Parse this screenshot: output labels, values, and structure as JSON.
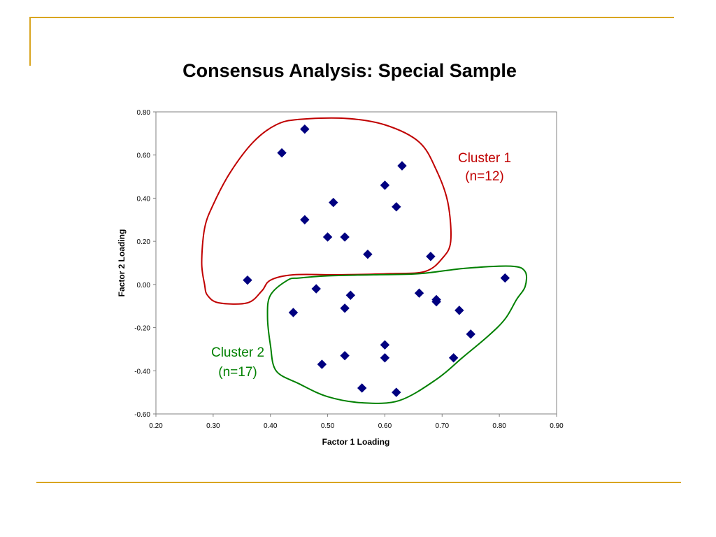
{
  "slide": {
    "title": "Consensus Analysis: Special Sample",
    "accent_color": "#D9A520"
  },
  "chart_data": {
    "type": "scatter",
    "xlabel": "Factor 1 Loading",
    "ylabel": "Factor 2 Loading",
    "xlim": [
      0.2,
      0.9
    ],
    "ylim": [
      -0.6,
      0.8
    ],
    "x_ticks": [
      "0.20",
      "0.30",
      "0.40",
      "0.50",
      "0.60",
      "0.70",
      "0.80",
      "0.90"
    ],
    "y_ticks": [
      "0.80",
      "0.60",
      "0.40",
      "0.20",
      "0.00",
      "-0.20",
      "-0.40",
      "-0.60"
    ],
    "grid": false,
    "marker": "diamond",
    "marker_color": "#000080",
    "points": [
      {
        "x": 0.46,
        "y": 0.72
      },
      {
        "x": 0.42,
        "y": 0.61
      },
      {
        "x": 0.63,
        "y": 0.55
      },
      {
        "x": 0.6,
        "y": 0.46
      },
      {
        "x": 0.51,
        "y": 0.38
      },
      {
        "x": 0.62,
        "y": 0.36
      },
      {
        "x": 0.46,
        "y": 0.3
      },
      {
        "x": 0.5,
        "y": 0.22
      },
      {
        "x": 0.53,
        "y": 0.22
      },
      {
        "x": 0.57,
        "y": 0.14
      },
      {
        "x": 0.68,
        "y": 0.13
      },
      {
        "x": 0.36,
        "y": 0.02
      },
      {
        "x": 0.81,
        "y": 0.03
      },
      {
        "x": 0.48,
        "y": -0.02
      },
      {
        "x": 0.54,
        "y": -0.05
      },
      {
        "x": 0.66,
        "y": -0.04
      },
      {
        "x": 0.69,
        "y": -0.07
      },
      {
        "x": 0.69,
        "y": -0.08
      },
      {
        "x": 0.44,
        "y": -0.13
      },
      {
        "x": 0.53,
        "y": -0.11
      },
      {
        "x": 0.73,
        "y": -0.12
      },
      {
        "x": 0.75,
        "y": -0.23
      },
      {
        "x": 0.6,
        "y": -0.28
      },
      {
        "x": 0.53,
        "y": -0.33
      },
      {
        "x": 0.6,
        "y": -0.34
      },
      {
        "x": 0.72,
        "y": -0.34
      },
      {
        "x": 0.49,
        "y": -0.37
      },
      {
        "x": 0.56,
        "y": -0.48
      },
      {
        "x": 0.62,
        "y": -0.5
      }
    ],
    "annotations": [
      {
        "name": "cluster-1",
        "lines": [
          "Cluster 1",
          "(n=12)"
        ],
        "color": "#C00000"
      },
      {
        "name": "cluster-2",
        "lines": [
          "Cluster 2",
          "(n=17)"
        ],
        "color": "#008000"
      }
    ],
    "outlines": [
      {
        "name": "cluster-1-outline",
        "color": "#C00000",
        "path": [
          [
            0.285,
            0.0
          ],
          [
            0.28,
            0.1
          ],
          [
            0.285,
            0.26
          ],
          [
            0.3,
            0.37
          ],
          [
            0.33,
            0.52
          ],
          [
            0.37,
            0.66
          ],
          [
            0.41,
            0.74
          ],
          [
            0.45,
            0.765
          ],
          [
            0.53,
            0.77
          ],
          [
            0.6,
            0.74
          ],
          [
            0.66,
            0.66
          ],
          [
            0.69,
            0.53
          ],
          [
            0.71,
            0.38
          ],
          [
            0.715,
            0.2
          ],
          [
            0.7,
            0.12
          ],
          [
            0.67,
            0.06
          ],
          [
            0.61,
            0.05
          ],
          [
            0.52,
            0.045
          ],
          [
            0.44,
            0.045
          ],
          [
            0.4,
            0.02
          ],
          [
            0.385,
            -0.03
          ],
          [
            0.36,
            -0.085
          ],
          [
            0.31,
            -0.085
          ],
          [
            0.29,
            -0.05
          ],
          [
            0.285,
            0.0
          ]
        ]
      },
      {
        "name": "cluster-2-outline",
        "color": "#008000",
        "path": [
          [
            0.43,
            0.02
          ],
          [
            0.4,
            -0.05
          ],
          [
            0.395,
            -0.15
          ],
          [
            0.4,
            -0.28
          ],
          [
            0.41,
            -0.4
          ],
          [
            0.45,
            -0.46
          ],
          [
            0.5,
            -0.52
          ],
          [
            0.56,
            -0.548
          ],
          [
            0.625,
            -0.538
          ],
          [
            0.69,
            -0.44
          ],
          [
            0.735,
            -0.34
          ],
          [
            0.78,
            -0.24
          ],
          [
            0.81,
            -0.16
          ],
          [
            0.83,
            -0.07
          ],
          [
            0.845,
            -0.01
          ],
          [
            0.845,
            0.06
          ],
          [
            0.82,
            0.085
          ],
          [
            0.74,
            0.075
          ],
          [
            0.66,
            0.05
          ],
          [
            0.58,
            0.045
          ],
          [
            0.5,
            0.04
          ],
          [
            0.45,
            0.03
          ],
          [
            0.43,
            0.02
          ]
        ]
      }
    ]
  }
}
